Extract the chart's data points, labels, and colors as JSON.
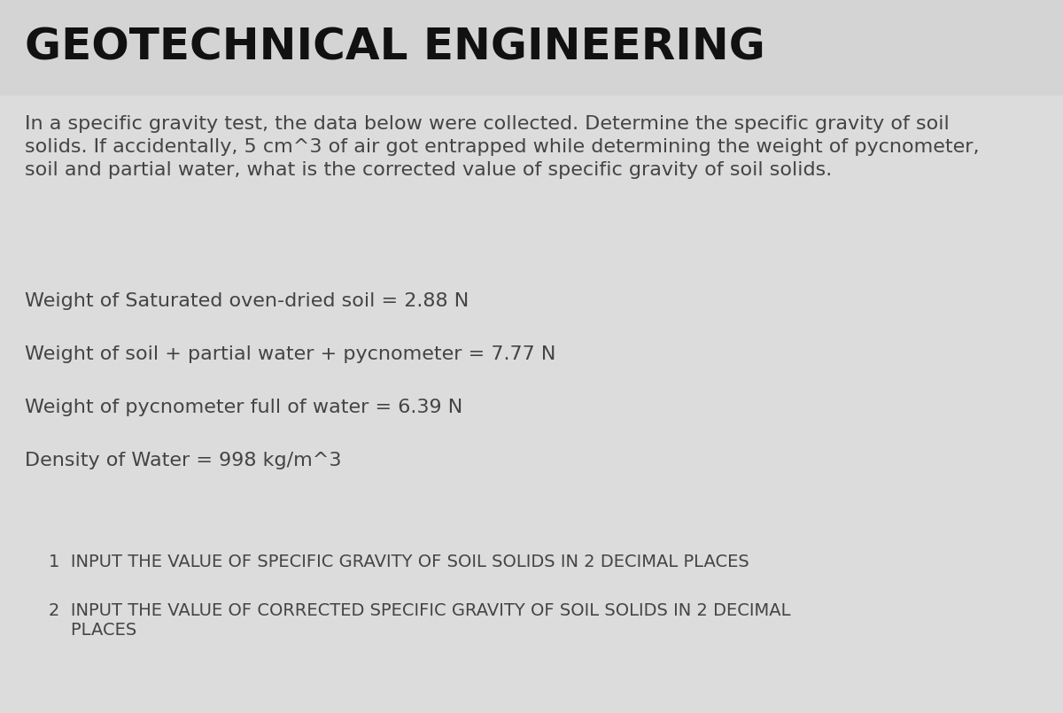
{
  "title": "GEOTECHNICAL ENGINEERING",
  "title_fontsize": 36,
  "title_color": "#111111",
  "title_bg_color": "#d4d4d4",
  "body_bg_color": "#dcdcdc",
  "intro_line1": "In a specific gravity test, the data below were collected. Determine the specific gravity of soil",
  "intro_line2": "solids. If accidentally, 5 cm^3 of air got entrapped while determining the weight of pycnometer,",
  "intro_line3": "soil and partial water, what is the corrected value of specific gravity of soil solids.",
  "intro_fontsize": 16,
  "intro_color": "#444444",
  "data_items": [
    "Weight of Saturated oven-dried soil = 2.88 N",
    "Weight of soil + partial water + pycnometer = 7.77 N",
    "Weight of pycnometer full of water = 6.39 N",
    "Density of Water = 998 kg/m^3"
  ],
  "data_fontsize": 16,
  "data_color": "#444444",
  "q1": "1  INPUT THE VALUE OF SPECIFIC GRAVITY OF SOIL SOLIDS IN 2 DECIMAL PLACES",
  "q2a": "2  INPUT THE VALUE OF CORRECTED SPECIFIC GRAVITY OF SOIL SOLIDS IN 2 DECIMAL",
  "q2b": "    PLACES",
  "questions_fontsize": 14,
  "questions_color": "#444444",
  "figwidth": 12.0,
  "figheight": 8.05,
  "dpi": 100
}
